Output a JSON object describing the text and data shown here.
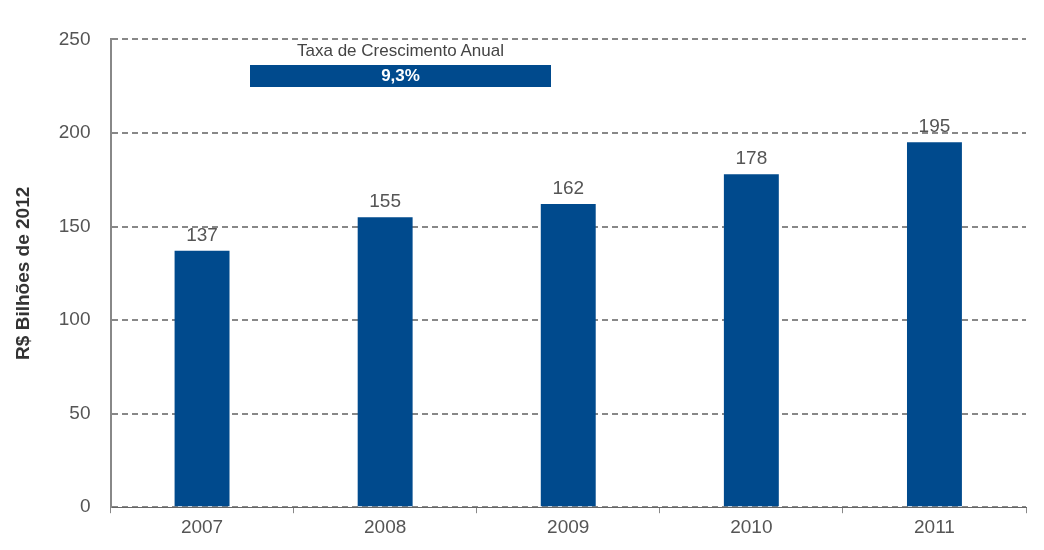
{
  "chart_data": {
    "type": "bar",
    "ylabel": "R$ Bilhões de 2012",
    "categories": [
      "2007",
      "2008",
      "2009",
      "2010",
      "2011"
    ],
    "values": [
      137,
      155,
      162,
      178,
      195
    ],
    "color": "#004a8d",
    "ylim": [
      0,
      250
    ],
    "yticks": [
      0,
      50,
      100,
      150,
      200,
      250
    ],
    "grid": "y",
    "data_labels": true,
    "annotations": [
      "Taxa de Crescimento Anual",
      "9,3%"
    ]
  }
}
